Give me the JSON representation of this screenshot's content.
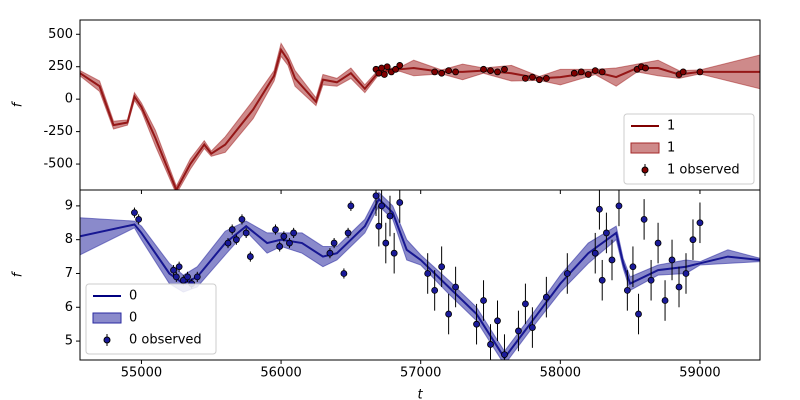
{
  "chart_data": [
    {
      "type": "line",
      "ylabel": "f",
      "xlim": [
        54560,
        59430
      ],
      "ylim": [
        -700,
        610
      ],
      "yticks": [
        -500,
        -250,
        0,
        250,
        500
      ],
      "legend": "lower right",
      "alpha": 0.55,
      "series": [
        {
          "name": "1",
          "color": "#800000",
          "x": [
            54560,
            54700,
            54800,
            54900,
            54950,
            55000,
            55100,
            55250,
            55350,
            55450,
            55500,
            55600,
            55800,
            55950,
            56000,
            56050,
            56100,
            56250,
            56300,
            56400,
            56500,
            56600,
            56700,
            56850,
            56950,
            57150,
            57300,
            57450,
            57650,
            57850,
            58000,
            58250,
            58400,
            58550,
            58700,
            58850,
            59000,
            59430
          ],
          "values": [
            200,
            100,
            -200,
            -180,
            20,
            -60,
            -300,
            -700,
            -500,
            -350,
            -420,
            -350,
            -80,
            180,
            380,
            300,
            160,
            -20,
            150,
            130,
            200,
            80,
            210,
            230,
            240,
            210,
            210,
            220,
            200,
            160,
            170,
            210,
            170,
            240,
            240,
            190,
            210,
            210
          ]
        },
        {
          "name": "1",
          "color": "#a52a2a",
          "x": [
            54560,
            54700,
            54800,
            54900,
            54950,
            55000,
            55100,
            55250,
            55350,
            55450,
            55500,
            55600,
            55800,
            55950,
            56000,
            56050,
            56100,
            56250,
            56300,
            56400,
            56500,
            56600,
            56700,
            56850,
            56950,
            57150,
            57300,
            57450,
            57650,
            57850,
            58000,
            58250,
            58400,
            58550,
            58700,
            58850,
            59000,
            59430
          ],
          "lower": [
            180,
            60,
            -230,
            -200,
            -10,
            -90,
            -360,
            -730,
            -540,
            -380,
            -440,
            -410,
            -150,
            140,
            330,
            260,
            100,
            -50,
            110,
            100,
            160,
            50,
            190,
            215,
            180,
            195,
            150,
            200,
            140,
            145,
            110,
            190,
            100,
            210,
            180,
            160,
            195,
            80
          ],
          "upper": [
            220,
            140,
            -170,
            -160,
            50,
            -30,
            -240,
            -670,
            -460,
            -320,
            -400,
            -290,
            -10,
            220,
            430,
            340,
            220,
            10,
            190,
            160,
            240,
            110,
            230,
            245,
            300,
            225,
            270,
            240,
            260,
            175,
            230,
            230,
            240,
            270,
            300,
            220,
            225,
            340
          ]
        },
        {
          "name": "1 observed",
          "color": "#800000",
          "x": [
            56680,
            56700,
            56720,
            56740,
            56760,
            56790,
            56820,
            56850,
            57100,
            57150,
            57200,
            57250,
            57450,
            57500,
            57550,
            57600,
            57750,
            57800,
            57850,
            57900,
            58100,
            58150,
            58200,
            58250,
            58300,
            58550,
            58580,
            58610,
            58850,
            58880,
            59000
          ],
          "values": [
            230,
            200,
            240,
            190,
            250,
            210,
            230,
            260,
            210,
            200,
            220,
            210,
            230,
            220,
            210,
            230,
            160,
            170,
            150,
            160,
            200,
            210,
            190,
            220,
            210,
            230,
            250,
            240,
            190,
            210,
            210
          ],
          "errors": [
            15,
            15,
            15,
            15,
            15,
            15,
            15,
            15,
            15,
            15,
            15,
            15,
            15,
            15,
            15,
            15,
            15,
            15,
            15,
            15,
            15,
            15,
            15,
            15,
            15,
            15,
            15,
            15,
            15,
            15,
            15
          ]
        }
      ]
    },
    {
      "type": "line",
      "ylabel": "f",
      "xlabel": "t",
      "xlim": [
        54560,
        59430
      ],
      "ylim": [
        4.44,
        9.47
      ],
      "yticks": [
        5,
        6,
        7,
        8,
        9
      ],
      "xticks": [
        55000,
        56000,
        57000,
        58000,
        59000
      ],
      "legend": "lower left",
      "alpha": 0.55,
      "series": [
        {
          "name": "0",
          "color": "#000080",
          "x": [
            54560,
            54950,
            55000,
            55200,
            55300,
            55400,
            55600,
            55750,
            55900,
            56000,
            56150,
            56300,
            56400,
            56600,
            56700,
            56800,
            56900,
            57000,
            57200,
            57400,
            57600,
            57800,
            58000,
            58200,
            58400,
            58450,
            58500,
            58700,
            58900,
            59000,
            59200,
            59430
          ],
          "values": [
            8.1,
            8.45,
            8.2,
            7.0,
            6.7,
            6.9,
            7.9,
            8.4,
            7.9,
            8.0,
            7.9,
            7.5,
            7.6,
            8.4,
            9.2,
            8.8,
            7.7,
            7.4,
            6.6,
            5.8,
            4.5,
            5.6,
            6.7,
            7.6,
            8.2,
            7.3,
            6.7,
            7.1,
            7.2,
            7.3,
            7.5,
            7.4
          ]
        },
        {
          "name": "0",
          "color": "#2a2aa0",
          "x": [
            54560,
            54950,
            55000,
            55200,
            55300,
            55400,
            55600,
            55750,
            55900,
            56000,
            56150,
            56300,
            56400,
            56600,
            56700,
            56800,
            56900,
            57000,
            57200,
            57400,
            57600,
            57800,
            58000,
            58200,
            58400,
            58450,
            58500,
            58700,
            58900,
            59000,
            59200,
            59430
          ],
          "lower": [
            7.55,
            8.35,
            8.0,
            6.7,
            6.45,
            6.6,
            7.55,
            8.25,
            7.6,
            7.8,
            7.6,
            7.2,
            7.4,
            8.2,
            9.0,
            8.6,
            7.4,
            7.25,
            6.4,
            5.6,
            4.3,
            5.4,
            6.45,
            7.3,
            8.0,
            7.15,
            6.5,
            6.95,
            7.0,
            7.25,
            7.3,
            7.35
          ],
          "upper": [
            8.65,
            8.55,
            8.4,
            7.3,
            6.95,
            7.2,
            8.25,
            8.55,
            8.2,
            8.2,
            8.2,
            7.8,
            7.8,
            8.6,
            9.4,
            9.0,
            8.0,
            7.55,
            6.8,
            6.0,
            4.7,
            5.8,
            6.95,
            7.9,
            8.4,
            7.45,
            6.9,
            7.25,
            7.4,
            7.35,
            7.7,
            7.45
          ]
        },
        {
          "name": "0 observed",
          "color": "#1a1a9a",
          "x": [
            54950,
            54980,
            55230,
            55250,
            55270,
            55300,
            55330,
            55360,
            55400,
            55620,
            55650,
            55680,
            55720,
            55750,
            55780,
            55960,
            55990,
            56020,
            56060,
            56090,
            56350,
            56380,
            56450,
            56480,
            56500,
            56680,
            56700,
            56720,
            56750,
            56780,
            56810,
            56850,
            57050,
            57100,
            57150,
            57200,
            57250,
            57400,
            57450,
            57500,
            57550,
            57600,
            57700,
            57750,
            57800,
            57900,
            58050,
            58250,
            58280,
            58300,
            58330,
            58370,
            58420,
            58480,
            58520,
            58560,
            58600,
            58650,
            58700,
            58750,
            58800,
            58850,
            58900,
            58950,
            59000
          ],
          "values": [
            8.8,
            8.6,
            7.1,
            6.9,
            7.2,
            6.8,
            6.9,
            6.7,
            6.9,
            7.9,
            8.3,
            8.0,
            8.6,
            8.2,
            7.5,
            8.3,
            7.8,
            8.1,
            7.9,
            8.2,
            7.6,
            7.9,
            7.0,
            8.2,
            9.0,
            9.3,
            8.4,
            9.0,
            7.9,
            8.7,
            7.6,
            9.1,
            7.0,
            6.5,
            7.2,
            5.8,
            6.6,
            5.5,
            6.2,
            4.9,
            5.6,
            4.6,
            5.3,
            6.1,
            5.4,
            6.3,
            7.0,
            7.6,
            8.9,
            6.8,
            8.2,
            7.4,
            9.0,
            6.5,
            7.2,
            5.8,
            8.6,
            6.8,
            7.9,
            6.2,
            7.4,
            6.6,
            7.0,
            8.0,
            8.5
          ],
          "errors": [
            0.15,
            0.15,
            0.15,
            0.15,
            0.15,
            0.15,
            0.15,
            0.15,
            0.15,
            0.15,
            0.15,
            0.15,
            0.15,
            0.15,
            0.15,
            0.15,
            0.15,
            0.15,
            0.15,
            0.15,
            0.15,
            0.15,
            0.15,
            0.15,
            0.15,
            0.6,
            0.6,
            0.6,
            0.6,
            0.6,
            0.6,
            0.6,
            0.6,
            0.6,
            0.6,
            0.6,
            0.6,
            0.6,
            0.6,
            0.6,
            0.6,
            0.6,
            0.6,
            0.6,
            0.6,
            0.6,
            0.6,
            0.6,
            0.6,
            0.6,
            0.6,
            0.6,
            0.6,
            0.6,
            0.6,
            0.6,
            0.6,
            0.6,
            0.6,
            0.6,
            0.6,
            0.6,
            0.6,
            0.6,
            0.6
          ]
        }
      ]
    }
  ]
}
